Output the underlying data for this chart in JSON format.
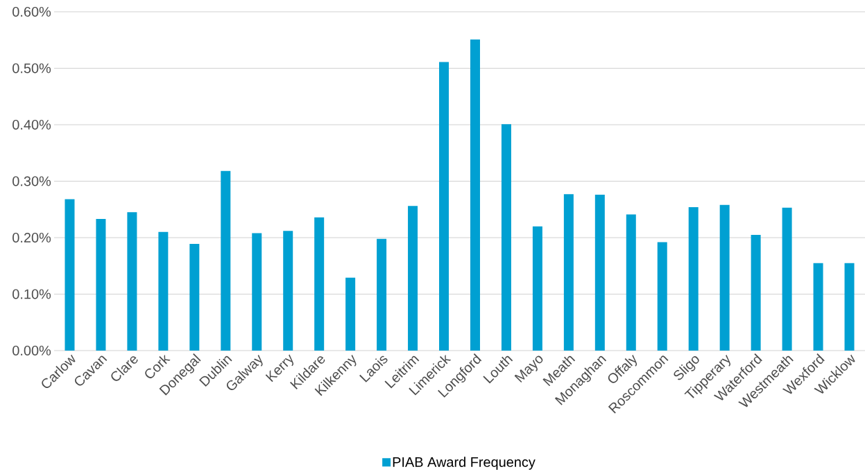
{
  "chart_data": {
    "type": "bar",
    "categories": [
      "Carlow",
      "Cavan",
      "Clare",
      "Cork",
      "Donegal",
      "Dublin",
      "Galway",
      "Kerry",
      "Kildare",
      "Kilkenny",
      "Laois",
      "Leitrim",
      "Limerick",
      "Longford",
      "Louth",
      "Mayo",
      "Meath",
      "Monaghan",
      "Offaly",
      "Roscommon",
      "Sligo",
      "Tipperary",
      "Waterford",
      "Westmeath",
      "Wexford",
      "Wicklow"
    ],
    "series": [
      {
        "name": "PIAB Award Frequency",
        "color": "#00a0d2",
        "values": [
          0.268,
          0.233,
          0.245,
          0.21,
          0.189,
          0.318,
          0.208,
          0.212,
          0.236,
          0.129,
          0.198,
          0.256,
          0.511,
          0.551,
          0.401,
          0.22,
          0.277,
          0.276,
          0.241,
          0.192,
          0.254,
          0.258,
          0.205,
          0.253,
          0.155,
          0.155
        ]
      }
    ],
    "ylim": [
      0,
      0.6
    ],
    "yticks": [
      {
        "value": 0,
        "label": "0.00%"
      },
      {
        "value": 0.1,
        "label": "0.10%"
      },
      {
        "value": 0.2,
        "label": "0.20%"
      },
      {
        "value": 0.3,
        "label": "0.30%"
      },
      {
        "value": 0.4,
        "label": "0.40%"
      },
      {
        "value": 0.5,
        "label": "0.50%"
      },
      {
        "value": 0.6,
        "label": "0.60%"
      }
    ],
    "grid": "y",
    "legend": "bottom"
  }
}
